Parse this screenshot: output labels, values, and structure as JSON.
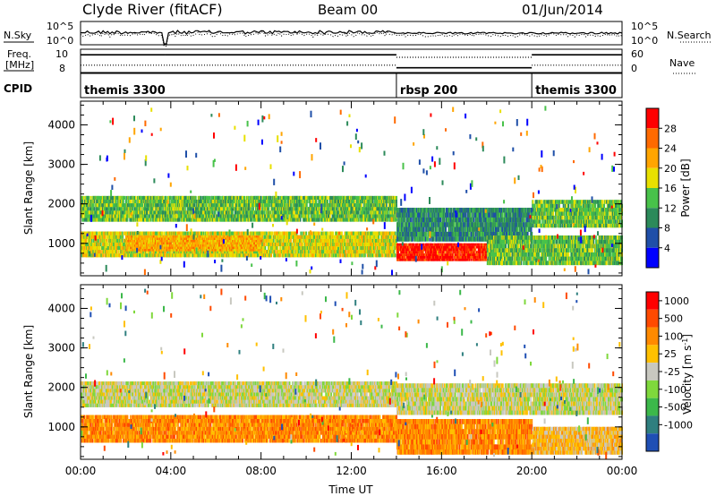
{
  "header": {
    "station": "Clyde River (fitACF)",
    "beam": "Beam 00",
    "date": "01/Jun/2014"
  },
  "chart_data": [
    {
      "type": "line",
      "id": "nsky-nsearch",
      "left_label": "N.Sky",
      "right_label": "N.Search",
      "left_ticks": [
        "10^5",
        "10^0"
      ],
      "right_ticks": [
        "10^5",
        "10^0"
      ],
      "x_range_hours": [
        0,
        24
      ],
      "series": [
        {
          "name": "N.Sky",
          "style": "solid",
          "values": []
        },
        {
          "name": "N.Search",
          "style": "dotted",
          "values": []
        }
      ]
    },
    {
      "type": "line",
      "id": "freq-nave",
      "left_label_top": "Freq.",
      "left_label_bottom": "[MHz]",
      "right_label": "Nave",
      "left_ticks": [
        "10",
        "8"
      ],
      "right_ticks": [
        "60",
        "0"
      ],
      "x_range_hours": [
        0,
        24
      ],
      "freq_segments": [
        {
          "start": 0.0,
          "end": 3.75,
          "freq_mhz": 10.2
        },
        {
          "start": 3.75,
          "end": 14.0,
          "freq_mhz": 10.2
        },
        {
          "start": 14.0,
          "end": 20.0,
          "freq_mhz": 8.5
        },
        {
          "start": 20.0,
          "end": 24.0,
          "freq_mhz": 10.2
        }
      ],
      "nave_segments": [
        {
          "start": 0.0,
          "end": 14.0,
          "nave": 18
        },
        {
          "start": 14.0,
          "end": 20.0,
          "nave": 40
        },
        {
          "start": 20.0,
          "end": 24.0,
          "nave": 18
        }
      ]
    },
    {
      "type": "table",
      "id": "cpid",
      "label": "CPID",
      "entries": [
        {
          "start": 0.0,
          "end": 14.0,
          "name": "themis 3300"
        },
        {
          "start": 14.0,
          "end": 20.0,
          "name": "rbsp 200"
        },
        {
          "start": 20.0,
          "end": 24.0,
          "name": "themis 3300"
        }
      ]
    },
    {
      "type": "heatmap",
      "id": "power",
      "ylabel": "Slant Range [km]",
      "ylim": [
        180,
        4600
      ],
      "yticks": [
        1000,
        2000,
        3000,
        4000
      ],
      "x_range_hours": [
        0,
        24
      ],
      "colorbar_label": "Power [dB]",
      "colorbar_ticks": [
        "28",
        "24",
        "20",
        "16",
        "12",
        "8",
        "4"
      ],
      "colorbar_colors": [
        "#0000ff",
        "#1f4fa8",
        "#2c8a5a",
        "#48c24a",
        "#e8e000",
        "#ffa500",
        "#ff6a00",
        "#ff0000"
      ],
      "bands": [
        {
          "t0": 0.0,
          "t1": 14.0,
          "r0": 1550,
          "r1": 2200,
          "level": 3
        },
        {
          "t0": 0.0,
          "t1": 14.0,
          "r0": 650,
          "r1": 1300,
          "level": 4
        },
        {
          "t0": 2.0,
          "t1": 8.0,
          "r0": 800,
          "r1": 1200,
          "level": 5
        },
        {
          "t0": 14.0,
          "t1": 18.0,
          "r0": 550,
          "r1": 1000,
          "level": 7
        },
        {
          "t0": 14.0,
          "t1": 20.0,
          "r0": 1050,
          "r1": 1900,
          "level": 2
        },
        {
          "t0": 20.0,
          "t1": 24.0,
          "r0": 1400,
          "r1": 2100,
          "level": 3
        },
        {
          "t0": 18.0,
          "t1": 24.0,
          "r0": 450,
          "r1": 1200,
          "level": 3
        }
      ]
    },
    {
      "type": "heatmap",
      "id": "velocity",
      "ylabel": "Slant Range [km]",
      "xlabel": "Time UT",
      "ylim": [
        180,
        4600
      ],
      "yticks": [
        1000,
        2000,
        3000,
        4000
      ],
      "x_range_hours": [
        0,
        24
      ],
      "xtick_labels": [
        "00:00",
        "04:00",
        "08:00",
        "12:00",
        "16:00",
        "20:00",
        "00:00"
      ],
      "colorbar_label": "Velocity [m s",
      "colorbar_label_sup": "-1",
      "colorbar_label_end": "]",
      "colorbar_ticks": [
        "1000",
        "500",
        "100",
        "25",
        "-25",
        "-100",
        "-500",
        "-1000"
      ],
      "colorbar_colors": [
        "#1f4fb4",
        "#2f7f7f",
        "#3cb84a",
        "#7fd83c",
        "#c8c8c0",
        "#ffc000",
        "#ff8a00",
        "#ff4a00",
        "#ff0000"
      ],
      "bands": [
        {
          "t0": 0.0,
          "t1": 14.0,
          "r0": 1500,
          "r1": 2150,
          "level": 4
        },
        {
          "t0": 0.0,
          "t1": 14.0,
          "r0": 600,
          "r1": 1300,
          "level": 6
        },
        {
          "t0": 14.0,
          "t1": 20.0,
          "r0": 300,
          "r1": 1200,
          "level": 6
        },
        {
          "t0": 14.0,
          "t1": 24.0,
          "r0": 1300,
          "r1": 2100,
          "level": 4
        },
        {
          "t0": 20.0,
          "t1": 24.0,
          "r0": 300,
          "r1": 1000,
          "level": 5
        }
      ]
    }
  ]
}
